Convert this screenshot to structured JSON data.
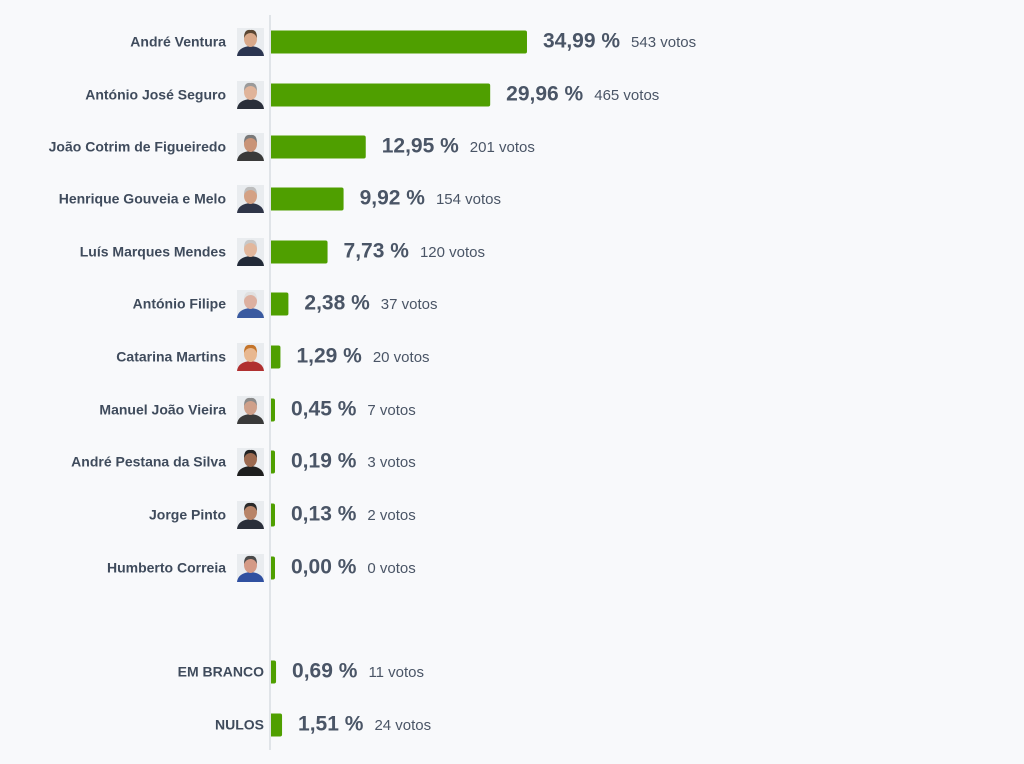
{
  "chart_data": [
    {
      "type": "bar",
      "color": "#4f9f00",
      "categories": [
        "André Ventura",
        "António José Seguro",
        "João Cotrim de Figueiredo",
        "Henrique Gouveia e Melo",
        "Luís Marques Mendes",
        "António Filipe",
        "Catarina Martins",
        "Manuel João Vieira",
        "André Pestana da Silva",
        "Jorge Pinto",
        "Humberto Correia"
      ],
      "values": [
        34.99,
        29.96,
        12.95,
        9.92,
        7.73,
        2.38,
        1.29,
        0.45,
        0.19,
        0.13,
        0.0
      ],
      "value_labels": [
        "34,99 %",
        "29,96 %",
        "12,95 %",
        "9,92 %",
        "7,73 %",
        "2,38 %",
        "1,29 %",
        "0,45 %",
        "0,19 %",
        "0,13 %",
        "0,00 %"
      ],
      "vote_labels": [
        "543 votos",
        "465 votos",
        "201 votos",
        "154 votos",
        "120 votos",
        "37 votos",
        "20 votos",
        "7 votos",
        "3 votos",
        "2 votos",
        "0 votos"
      ]
    },
    {
      "type": "bar",
      "color": "#4f9f00",
      "categories": [
        "EM BRANCO",
        "NULOS"
      ],
      "values": [
        0.69,
        1.51
      ],
      "value_labels": [
        "0,69 %",
        "1,51 %"
      ],
      "vote_labels": [
        "11 votos",
        "24 votos"
      ]
    }
  ]
}
